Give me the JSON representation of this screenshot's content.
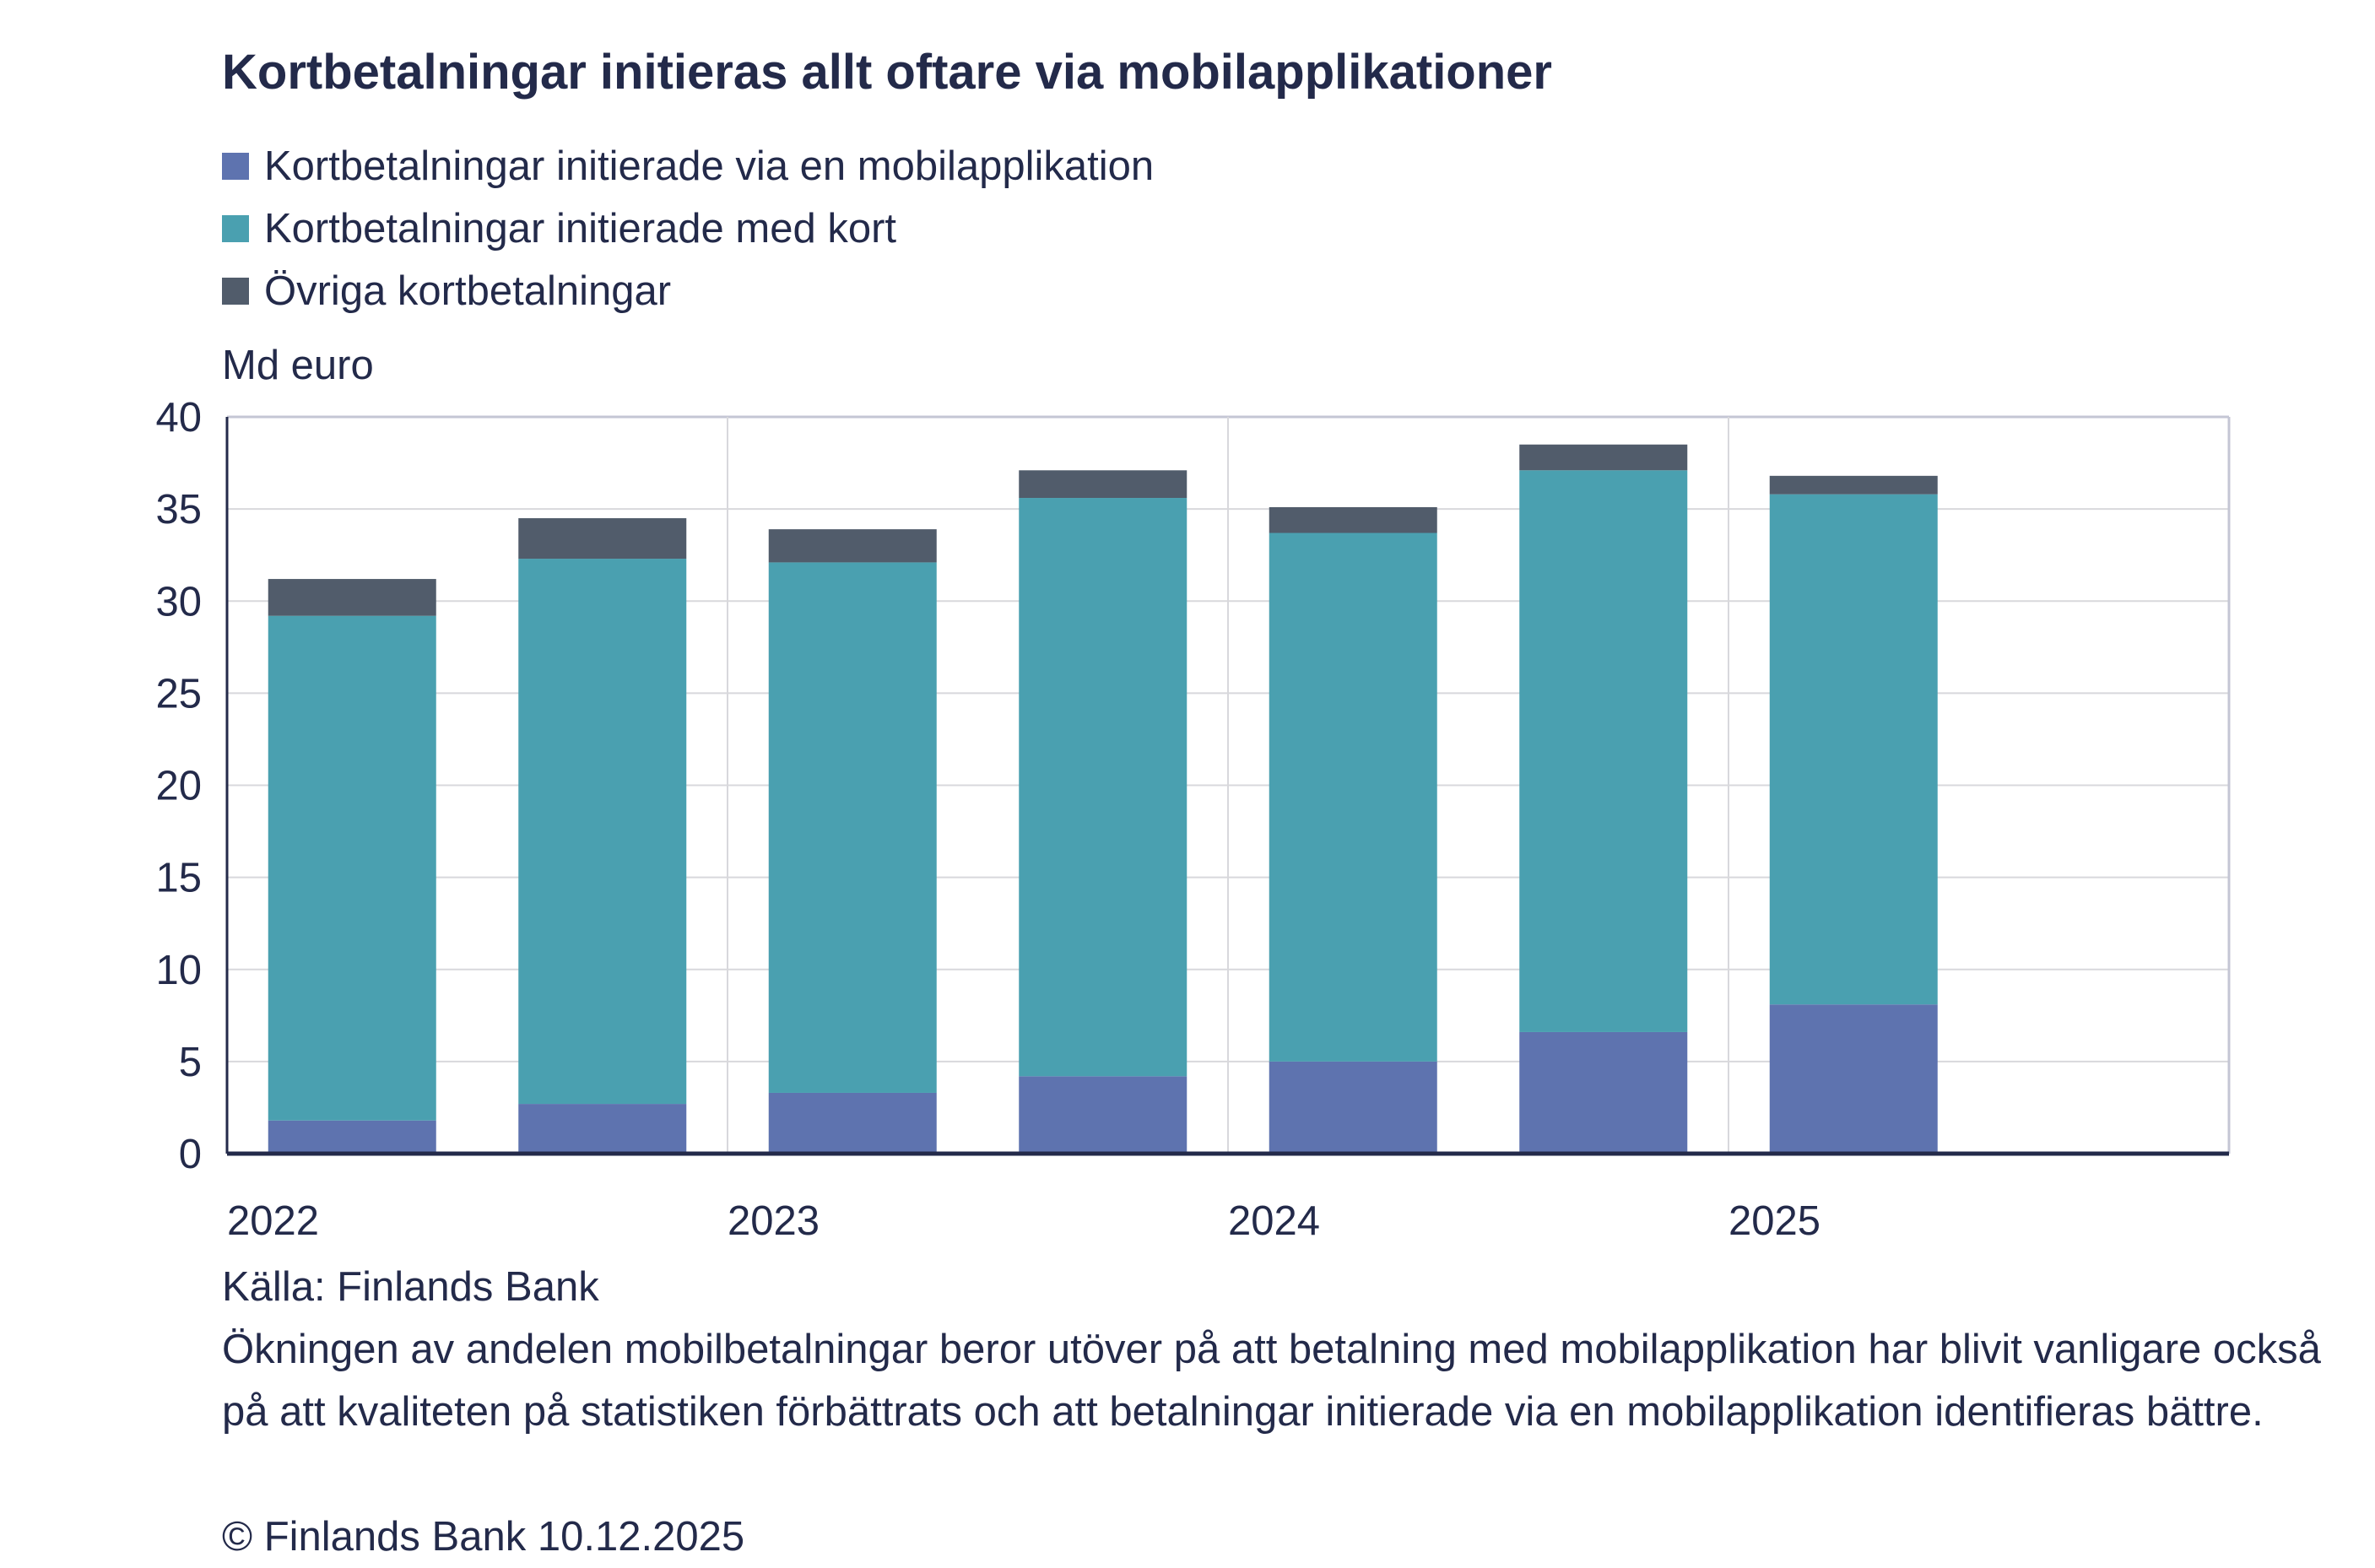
{
  "chart_data": {
    "type": "bar",
    "stacked": true,
    "title": "Kortbetalningar initieras allt oftare via mobilapplikationer",
    "ylabel": "Md euro",
    "ylim": [
      0,
      40
    ],
    "yticks": [
      0,
      5,
      10,
      15,
      20,
      25,
      30,
      35,
      40
    ],
    "xtick_labels": [
      "2022",
      "2023",
      "2024",
      "2025"
    ],
    "grid": true,
    "legend_position": "top-left",
    "categories": [
      "2022 H1",
      "2022 H2",
      "2023 H1",
      "2023 H2",
      "2024 H1",
      "2024 H2",
      "2025 H1"
    ],
    "series": [
      {
        "name": "Kortbetalningar initierade via en mobilapplikation",
        "color": "#5e73af",
        "values": [
          1.8,
          2.7,
          3.3,
          4.2,
          5.0,
          6.6,
          8.1
        ]
      },
      {
        "name": "Kortbetalningar initierade med kort",
        "color": "#4aa0b0",
        "values": [
          27.4,
          29.6,
          28.8,
          31.4,
          28.7,
          30.5,
          27.7
        ]
      },
      {
        "name": "Övriga kortbetalningar",
        "color": "#515c6b",
        "values": [
          2.0,
          2.2,
          1.8,
          1.5,
          1.4,
          1.4,
          1.0
        ]
      }
    ]
  },
  "footer": {
    "source": "Källa: Finlands Bank",
    "note": "Ökningen av andelen mobilbetalningar beror utöver på att betalning med mobilapplikation har blivit vanligare också på att kvaliteten på statistiken förbättrats och att betalningar initierade via en mobilapplikation identifieras bättre.",
    "copyright": "© Finlands Bank 10.12.2025"
  }
}
